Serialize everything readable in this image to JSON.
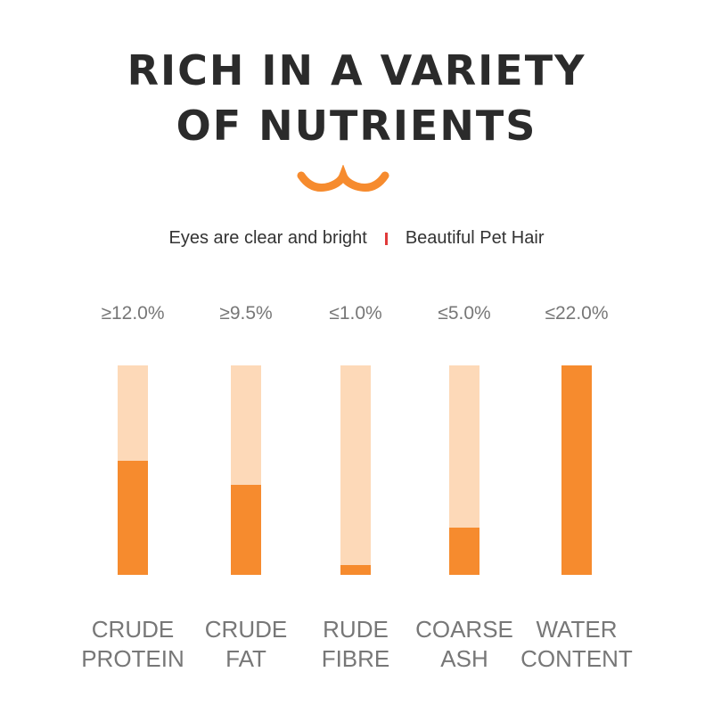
{
  "chart_data": {
    "type": "bar",
    "title": "RICH IN A VARIETY OF NUTRIENTS",
    "subtitle": [
      "Eyes are clear and bright",
      "Beautiful Pet Hair"
    ],
    "categories": [
      "CRUDE PROTEIN",
      "CRUDE FAT",
      "RUDE FIBRE",
      "COARSE ASH",
      "WATER CONTENT"
    ],
    "values": [
      12.0,
      9.5,
      1.0,
      5.0,
      22.0
    ],
    "value_labels": [
      "≥12.0%",
      "≥9.5%",
      "≤1.0%",
      "≤5.0%",
      "≤22.0%"
    ],
    "color": "#f68b2e",
    "track_color": "#fdd9b8",
    "ylim": [
      0,
      22
    ]
  }
}
